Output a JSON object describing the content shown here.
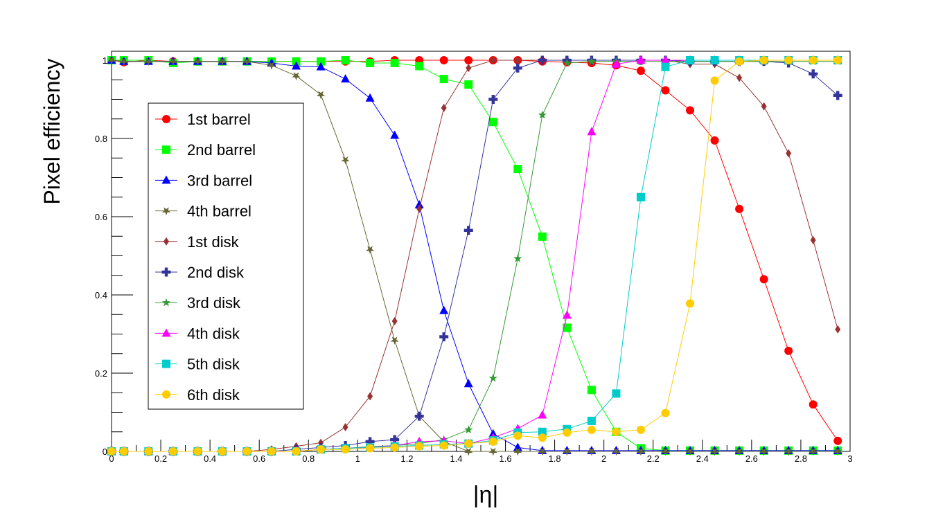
{
  "chart_data": {
    "type": "line",
    "title": "",
    "xlabel": "|η|",
    "ylabel": "Pixel efficiency",
    "xlim": [
      0,
      3
    ],
    "ylim": [
      0,
      1.02
    ],
    "x_ticks": [
      "0",
      "0.2",
      "0.4",
      "0.6",
      "0.8",
      "1",
      "1.2",
      "1.4",
      "1.6",
      "1.8",
      "2",
      "2.2",
      "2.4",
      "2.6",
      "2.8",
      "3"
    ],
    "y_ticks": [
      "0",
      "0.2",
      "0.4",
      "0.6",
      "0.8",
      "1"
    ],
    "legend_position": "left",
    "grid": false,
    "x": [
      0.0,
      0.05,
      0.15,
      0.25,
      0.35,
      0.45,
      0.55,
      0.65,
      0.75,
      0.85,
      0.95,
      1.05,
      1.15,
      1.25,
      1.35,
      1.45,
      1.55,
      1.65,
      1.75,
      1.85,
      1.95,
      2.05,
      2.15,
      2.25,
      2.35,
      2.45,
      2.55,
      2.65,
      2.75,
      2.85,
      2.95
    ],
    "series": [
      {
        "name": "1st barrel",
        "color": "#ff0000",
        "marker": "circle",
        "values": [
          1.0,
          0.995,
          1.0,
          0.997,
          0.997,
          0.997,
          0.997,
          0.997,
          0.997,
          0.997,
          0.997,
          0.997,
          1.0,
          1.0,
          1.0,
          1.0,
          1.0,
          1.0,
          0.997,
          0.995,
          0.993,
          0.987,
          0.973,
          0.923,
          0.872,
          0.795,
          0.62,
          0.44,
          0.257,
          0.12,
          0.027
        ]
      },
      {
        "name": "2nd barrel",
        "color": "#00ff00",
        "marker": "square",
        "values": [
          1.0,
          1.0,
          1.0,
          0.993,
          0.997,
          0.997,
          0.997,
          0.997,
          0.997,
          0.997,
          1.0,
          0.993,
          0.993,
          0.985,
          0.952,
          0.938,
          0.842,
          0.722,
          0.549,
          0.316,
          0.157,
          0.05,
          0.008,
          0.002,
          0.002,
          0.002,
          0.002,
          0.002,
          0.002,
          0.002,
          0.002
        ]
      },
      {
        "name": "3rd barrel",
        "color": "#0000ff",
        "marker": "triangle",
        "values": [
          1.0,
          0.997,
          0.997,
          0.997,
          0.997,
          0.997,
          0.997,
          0.993,
          0.985,
          0.983,
          0.952,
          0.903,
          0.808,
          0.63,
          0.36,
          0.173,
          0.045,
          0.01,
          0.002,
          0.002,
          0.002,
          0.002,
          0.002,
          0.002,
          0.002,
          0.002,
          0.002,
          0.002,
          0.002,
          0.002,
          0.002
        ]
      },
      {
        "name": "4th barrel",
        "color": "#666633",
        "marker": "star",
        "values": [
          1.0,
          0.997,
          0.997,
          0.997,
          0.997,
          0.997,
          0.997,
          0.987,
          0.96,
          0.912,
          0.745,
          0.516,
          0.284,
          0.09,
          0.025,
          0.0,
          0.0,
          0.0,
          0.0,
          0.0,
          0.0,
          0.0,
          0.0,
          0.0,
          0.0,
          0.0,
          0.0,
          0.0,
          0.0,
          0.0,
          0.0
        ]
      },
      {
        "name": "1st disk",
        "color": "#993333",
        "marker": "diamond",
        "values": [
          0.0,
          0.0,
          0.0,
          0.0,
          0.0,
          0.0,
          0.0,
          0.005,
          0.013,
          0.022,
          0.062,
          0.141,
          0.333,
          0.62,
          0.878,
          0.98,
          1.0,
          1.0,
          1.0,
          1.0,
          1.0,
          1.0,
          1.0,
          1.0,
          0.99,
          0.99,
          0.955,
          0.882,
          0.762,
          0.54,
          0.312
        ]
      },
      {
        "name": "2nd disk",
        "color": "#333399",
        "marker": "cross",
        "values": [
          0.0,
          0.0,
          0.0,
          0.0,
          0.0,
          0.0,
          0.0,
          0.0,
          0.005,
          0.01,
          0.015,
          0.025,
          0.03,
          0.09,
          0.293,
          0.565,
          0.9,
          0.98,
          1.0,
          1.0,
          1.0,
          1.0,
          1.0,
          1.0,
          0.997,
          0.997,
          0.997,
          0.997,
          0.993,
          0.965,
          0.91
        ]
      },
      {
        "name": "3rd disk",
        "color": "#339933",
        "marker": "tristar",
        "values": [
          0.0,
          0.0,
          0.0,
          0.0,
          0.0,
          0.0,
          0.0,
          0.0,
          0.0,
          0.005,
          0.008,
          0.012,
          0.015,
          0.02,
          0.03,
          0.055,
          0.187,
          0.493,
          0.86,
          0.993,
          0.997,
          0.997,
          0.997,
          0.997,
          0.997,
          0.997,
          0.997,
          0.997,
          0.997,
          0.997,
          0.997
        ]
      },
      {
        "name": "4th disk",
        "color": "#ff00ff",
        "marker": "triangle",
        "values": [
          0.0,
          0.0,
          0.0,
          0.0,
          0.0,
          0.0,
          0.0,
          0.0,
          0.0,
          0.005,
          0.008,
          0.01,
          0.015,
          0.025,
          0.027,
          0.02,
          0.035,
          0.058,
          0.093,
          0.348,
          0.817,
          0.99,
          1.0,
          1.0,
          1.0,
          1.0,
          1.0,
          1.0,
          1.0,
          1.0,
          1.0
        ]
      },
      {
        "name": "5th disk",
        "color": "#00cccc",
        "marker": "square",
        "values": [
          0.0,
          0.0,
          0.0,
          0.0,
          0.0,
          0.0,
          0.0,
          0.0,
          0.0,
          0.005,
          0.008,
          0.01,
          0.013,
          0.015,
          0.018,
          0.02,
          0.028,
          0.048,
          0.05,
          0.057,
          0.078,
          0.148,
          0.65,
          0.983,
          1.0,
          1.0,
          1.0,
          1.0,
          1.0,
          1.0,
          1.0
        ]
      },
      {
        "name": "6th disk",
        "color": "#ffcc00",
        "marker": "circle",
        "values": [
          0.0,
          0.0,
          0.0,
          0.0,
          0.0,
          0.0,
          0.0,
          0.0,
          0.0,
          0.005,
          0.005,
          0.008,
          0.01,
          0.013,
          0.015,
          0.02,
          0.025,
          0.04,
          0.035,
          0.048,
          0.055,
          0.05,
          0.055,
          0.098,
          0.378,
          0.948,
          0.997,
          1.0,
          1.0,
          1.0,
          1.0
        ]
      }
    ]
  }
}
